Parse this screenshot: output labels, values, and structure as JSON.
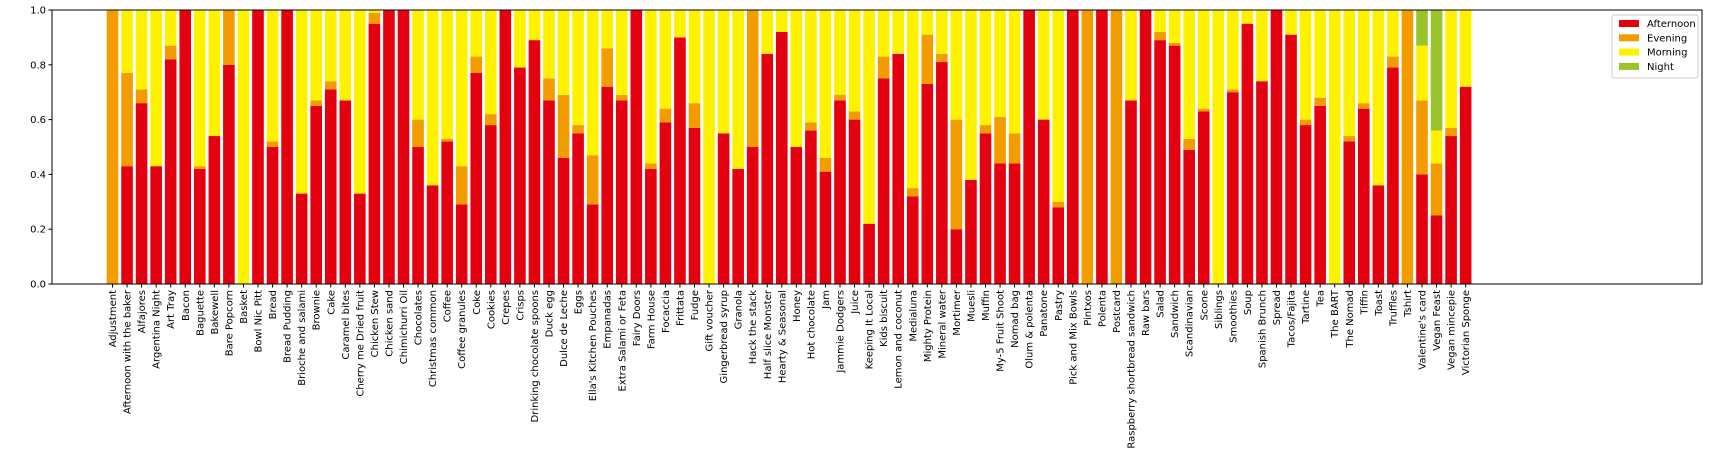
{
  "chart_data": {
    "type": "bar",
    "stacked": true,
    "normalized": true,
    "categories": [
      "Adjustment",
      "Afternoon with the baker",
      "Alfajores",
      "Argentina Night",
      "Art Tray",
      "Bacon",
      "Baguette",
      "Bakewell",
      "Bare Popcorn",
      "Basket",
      "Bowl Nic Pitt",
      "Bread",
      "Bread Pudding",
      "Brioche and salami",
      "Brownie",
      "Cake",
      "Caramel bites",
      "Cherry me Dried fruit",
      "Chicken Stew",
      "Chicken sand",
      "Chimichurri Oil",
      "Chocolates",
      "Christmas common",
      "Coffee",
      "Coffee granules",
      "Coke",
      "Cookies",
      "Crepes",
      "Crisps",
      "Drinking chocolate spoons",
      "Duck egg",
      "Dulce de Leche",
      "Eggs",
      "Ella's Kitchen Pouches",
      "Empanadas",
      "Extra Salami or Feta",
      "Fairy Doors",
      "Farm House",
      "Focaccia",
      "Frittata",
      "Fudge",
      "Gift voucher",
      "Gingerbread syrup",
      "Granola",
      "Hack the stack",
      "Half slice Monster",
      "Hearty & Seasonal",
      "Honey",
      "Hot chocolate",
      "Jam",
      "Jammie Dodgers",
      "Juice",
      "Keeping It Local",
      "Kids biscuit",
      "Lemon and coconut",
      "Medialuna",
      "Mighty Protein",
      "Mineral water",
      "Mortimer",
      "Muesli",
      "Muffin",
      "My-5 Fruit Shoot",
      "Nomad bag",
      "Olum & polenta",
      "Panatone",
      "Pastry",
      "Pick and Mix Bowls",
      "Pintxos",
      "Polenta",
      "Postcard",
      "Raspberry shortbread sandwich",
      "Raw bars",
      "Salad",
      "Sandwich",
      "Scandinavian",
      "Scone",
      "Siblings",
      "Smoothies",
      "Soup",
      "Spanish Brunch",
      "Spread",
      "Tacos/Fajita",
      "Tartine",
      "Tea",
      "The BART",
      "The Nomad",
      "Tiffin",
      "Toast",
      "Truffles",
      "Tshirt",
      "Valentine's card",
      "Vegan Feast",
      "Vegan mincepie",
      "Victorian Sponge"
    ],
    "series": [
      {
        "name": "Afternoon",
        "color": "#e3000f",
        "values": [
          0,
          0.43,
          0.66,
          0.43,
          0.82,
          1,
          0.42,
          0.54,
          0.8,
          0,
          1,
          0.5,
          1,
          0.33,
          0.65,
          0.71,
          0.67,
          0.33,
          0.95,
          1,
          1,
          0.5,
          0.36,
          0.52,
          0.29,
          0.77,
          0.58,
          1,
          0.79,
          0.89,
          0.67,
          0.46,
          0.55,
          0.29,
          0.72,
          0.67,
          1,
          0.42,
          0.59,
          0.9,
          0.57,
          0,
          0.55,
          0.42,
          0.5,
          0.84,
          0.92,
          0.5,
          0.56,
          0.41,
          0.67,
          0.6,
          0.22,
          0.75,
          0.84,
          0.32,
          0.73,
          0.81,
          0.2,
          0.38,
          0.55,
          0.44,
          0.44,
          1,
          0.6,
          0.28,
          1,
          0,
          1,
          0,
          0.67,
          1,
          0.89,
          0.87,
          0.49,
          0.63,
          0,
          0.7,
          0.95,
          0.74,
          1,
          0.91,
          0.58,
          0.65,
          0,
          0.52,
          0.64,
          0.36,
          0.79,
          0,
          0.4,
          0.25,
          0.54,
          0.72
        ]
      },
      {
        "name": "Evening",
        "color": "#f39c00",
        "values": [
          1,
          0.34,
          0.05,
          0,
          0.05,
          0,
          0.01,
          0,
          0.2,
          0,
          0,
          0.02,
          0,
          0,
          0.02,
          0.03,
          0,
          0,
          0.04,
          0,
          0,
          0.1,
          0,
          0.01,
          0.14,
          0.06,
          0.04,
          0,
          0,
          0,
          0.08,
          0.23,
          0.03,
          0.18,
          0.14,
          0.02,
          0,
          0.02,
          0.05,
          0,
          0.09,
          0,
          0,
          0,
          0.5,
          0,
          0,
          0,
          0.03,
          0.05,
          0.02,
          0.03,
          0,
          0.08,
          0,
          0.03,
          0.18,
          0.03,
          0.4,
          0,
          0.03,
          0.17,
          0.11,
          0,
          0,
          0.02,
          0,
          1,
          0,
          1,
          0,
          0,
          0.03,
          0.01,
          0.04,
          0.01,
          0,
          0.01,
          0,
          0,
          0,
          0,
          0.02,
          0.03,
          0,
          0.02,
          0.02,
          0,
          0.04,
          1,
          0.27,
          0.19,
          0.03,
          0
        ]
      },
      {
        "name": "Morning",
        "color": "#fff200",
        "values": [
          0,
          0.23,
          0.29,
          0.57,
          0.13,
          0,
          0.57,
          0.46,
          0,
          1,
          0,
          0.48,
          0,
          0.67,
          0.33,
          0.26,
          0.33,
          0.67,
          0.01,
          0,
          0,
          0.4,
          0.64,
          0.47,
          0.57,
          0.17,
          0.38,
          0,
          0.21,
          0.11,
          0.25,
          0.31,
          0.42,
          0.53,
          0.14,
          0.31,
          0,
          0.56,
          0.36,
          0.1,
          0.34,
          1,
          0.45,
          0.58,
          0,
          0.16,
          0.08,
          0.5,
          0.41,
          0.54,
          0.31,
          0.37,
          0.78,
          0.17,
          0.16,
          0.65,
          0.09,
          0.16,
          0.4,
          0.62,
          0.42,
          0.39,
          0.45,
          0,
          0.4,
          0.7,
          0,
          0,
          0,
          0,
          0.33,
          0,
          0.08,
          0.12,
          0.47,
          0.36,
          1,
          0.29,
          0.05,
          0.26,
          0,
          0.09,
          0.4,
          0.32,
          1,
          0.46,
          0.34,
          0.64,
          0.17,
          0,
          0.2,
          0.12,
          0.43,
          0.28
        ]
      },
      {
        "name": "Night",
        "color": "#9ac42c",
        "values": [
          0,
          0,
          0,
          0,
          0,
          0,
          0,
          0,
          0,
          0,
          0,
          0,
          0,
          0,
          0,
          0,
          0,
          0,
          0,
          0,
          0,
          0,
          0,
          0,
          0,
          0,
          0,
          0,
          0,
          0,
          0,
          0,
          0,
          0,
          0,
          0,
          0,
          0,
          0,
          0,
          0,
          0,
          0,
          0,
          0,
          0,
          0,
          0,
          0,
          0,
          0,
          0,
          0,
          0,
          0,
          0,
          0,
          0,
          0,
          0,
          0,
          0,
          0,
          0,
          0,
          0,
          0,
          0,
          0,
          0,
          0,
          0,
          0,
          0,
          0,
          0,
          0,
          0,
          0,
          0,
          0,
          0,
          0,
          0,
          0,
          0,
          0,
          0,
          0,
          0,
          0.13,
          0.44,
          0,
          0
        ]
      }
    ],
    "title": "",
    "xlabel": "",
    "ylabel": "",
    "ylim": [
      0,
      1.0
    ],
    "yticks": [
      "0.0",
      "0.2",
      "0.4",
      "0.6",
      "0.8",
      "1.0"
    ],
    "legend": {
      "position": "top-right",
      "entries": [
        "Afternoon",
        "Evening",
        "Morning",
        "Night"
      ]
    },
    "grid": false
  }
}
